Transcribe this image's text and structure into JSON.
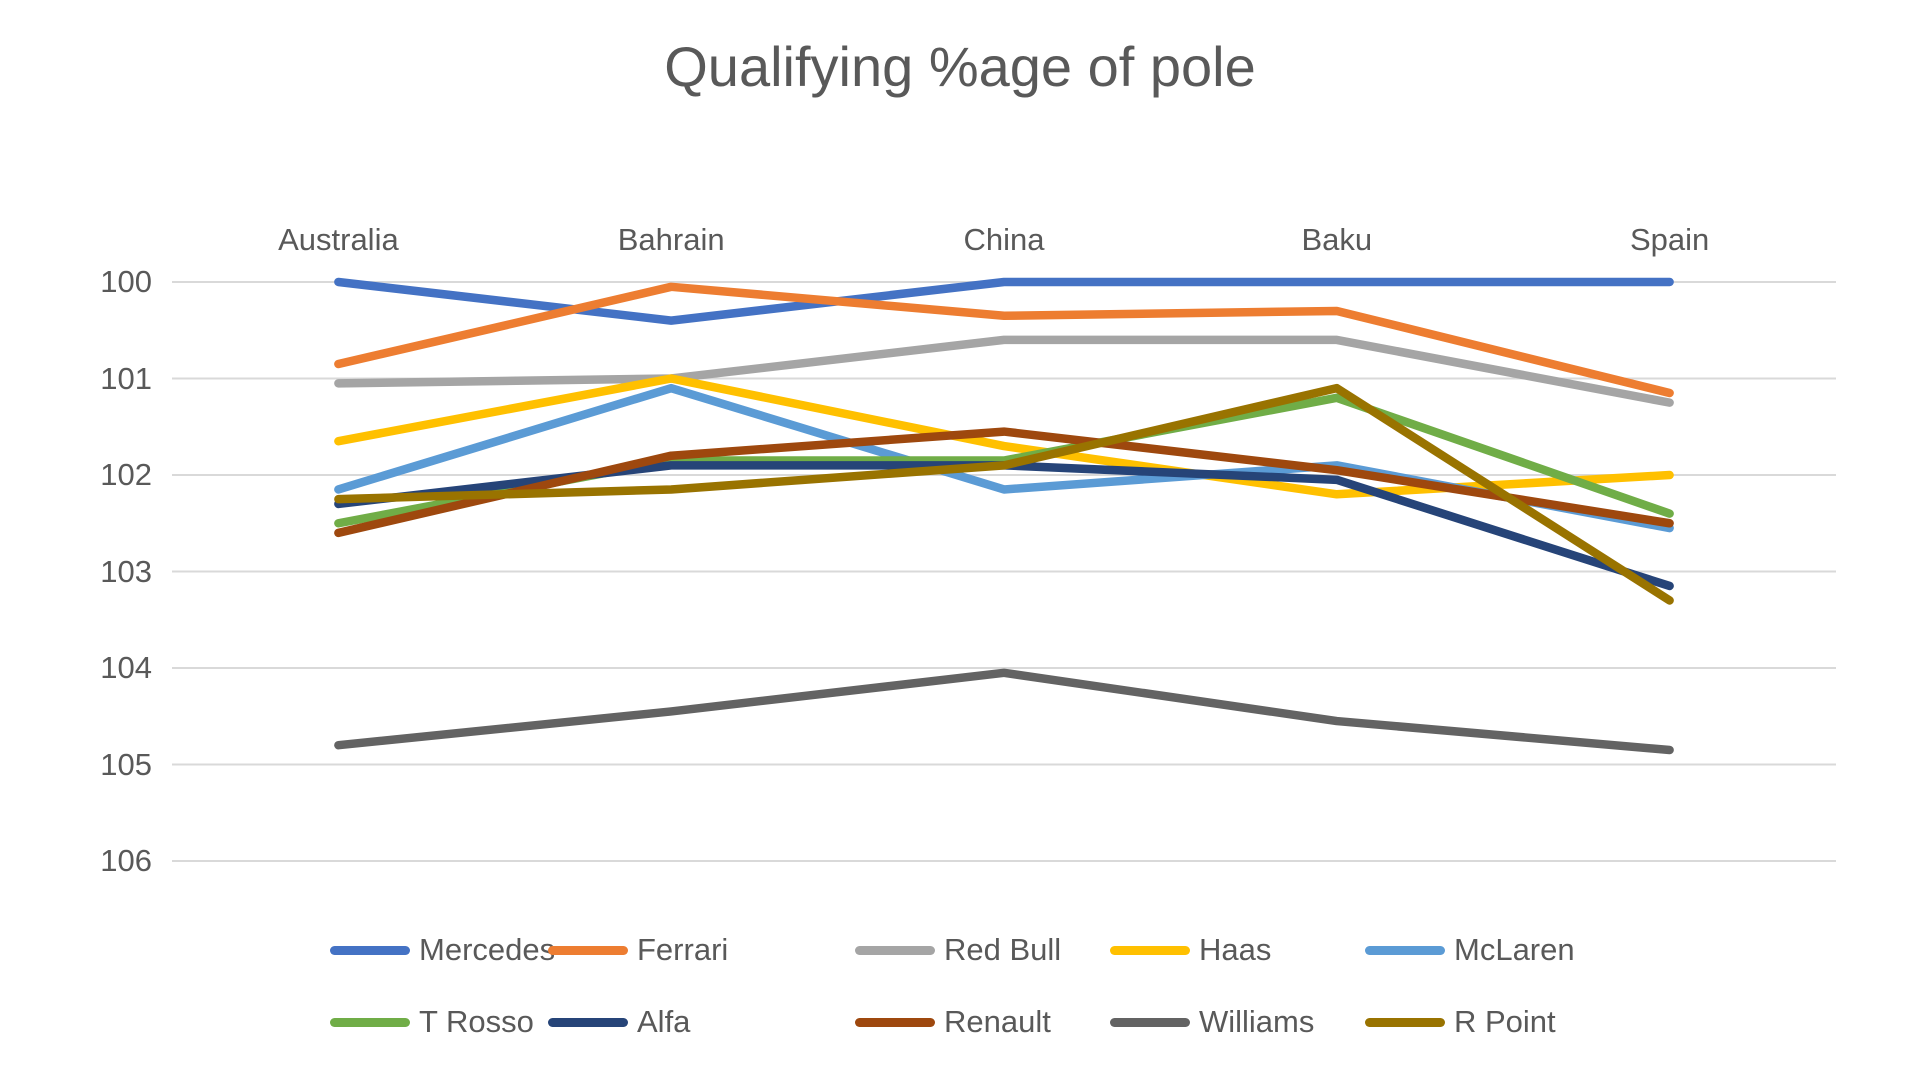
{
  "title": "Qualifying %age of pole",
  "chart_data": {
    "type": "line",
    "title": "Qualifying %age of pole",
    "categories": [
      "Australia",
      "Bahrain",
      "China",
      "Baku",
      "Spain"
    ],
    "series": [
      {
        "name": "Mercedes",
        "color": "#4472C4",
        "values": [
          100.0,
          100.4,
          100.0,
          100.0,
          100.0
        ]
      },
      {
        "name": "Ferrari",
        "color": "#ED7D31",
        "values": [
          100.85,
          100.05,
          100.35,
          100.3,
          101.15
        ]
      },
      {
        "name": "Red Bull",
        "color": "#A5A5A5",
        "values": [
          101.05,
          101.0,
          100.6,
          100.6,
          101.25
        ]
      },
      {
        "name": "Haas",
        "color": "#FFC000",
        "values": [
          101.65,
          101.0,
          101.7,
          102.2,
          102.0
        ]
      },
      {
        "name": "McLaren",
        "color": "#5B9BD5",
        "values": [
          102.15,
          101.1,
          102.15,
          101.9,
          102.55
        ]
      },
      {
        "name": "T Rosso",
        "color": "#70AD47",
        "values": [
          102.5,
          101.85,
          101.85,
          101.2,
          102.4
        ]
      },
      {
        "name": "Alfa",
        "color": "#264478",
        "values": [
          102.3,
          101.9,
          101.9,
          102.05,
          103.15
        ]
      },
      {
        "name": "Renault",
        "color": "#9E480E",
        "values": [
          102.6,
          101.8,
          101.55,
          101.95,
          102.5
        ]
      },
      {
        "name": "Williams",
        "color": "#636363",
        "values": [
          104.8,
          104.45,
          104.05,
          104.55,
          104.85
        ]
      },
      {
        "name": "R Point",
        "color": "#997300",
        "values": [
          102.25,
          102.15,
          101.9,
          101.1,
          103.3
        ]
      }
    ],
    "y_axis": {
      "ticks": [
        100,
        101,
        102,
        103,
        104,
        105,
        106
      ],
      "min": 100,
      "max": 106,
      "reversed": true
    },
    "x_axis": {
      "labels_position": "top"
    },
    "grid": true,
    "legend_position": "bottom",
    "legend_rows": 2
  },
  "styles": {
    "text_color": "#595959",
    "gridline_color": "#D9D9D9",
    "background": "#FFFFFF",
    "line_width": 8.5
  }
}
